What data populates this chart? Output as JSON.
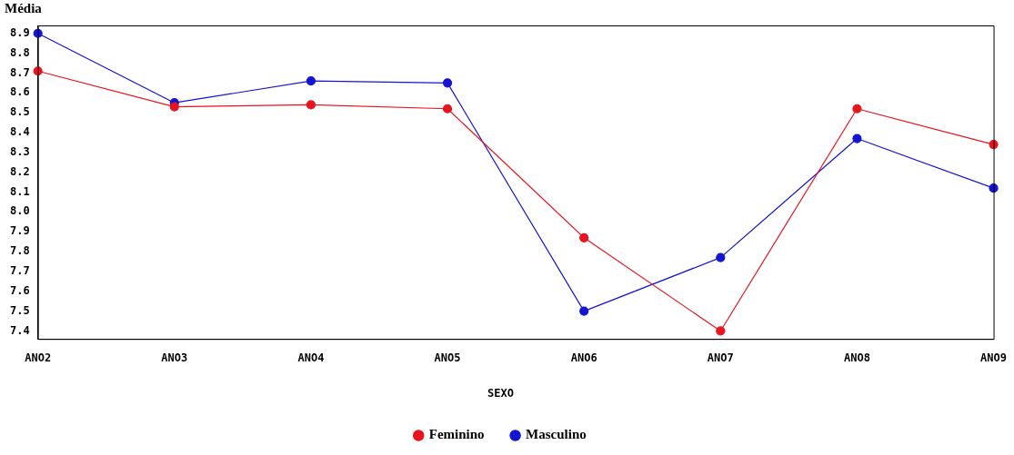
{
  "chart_data": {
    "type": "line",
    "ylabel": "Média",
    "legend_title": "SEXO",
    "legend": "bottom",
    "grid": false,
    "marker": "circle",
    "line_style": "solid",
    "categories": [
      "ANO2",
      "ANO3",
      "ANO4",
      "ANO5",
      "ANO6",
      "ANO7",
      "ANO8",
      "ANO9"
    ],
    "ylim": [
      7.36,
      8.94
    ],
    "yticks": [
      {
        "value": 7.4,
        "label": "7.4"
      },
      {
        "value": 7.5,
        "label": "7.5"
      },
      {
        "value": 7.6,
        "label": "7.6"
      },
      {
        "value": 7.7,
        "label": "7.7"
      },
      {
        "value": 7.8,
        "label": "7.8"
      },
      {
        "value": 7.9,
        "label": "7.9"
      },
      {
        "value": 8.0,
        "label": "8.0"
      },
      {
        "value": 8.1,
        "label": "8.1"
      },
      {
        "value": 8.2,
        "label": "8.2"
      },
      {
        "value": 8.3,
        "label": "8.3"
      },
      {
        "value": 8.4,
        "label": "8.4"
      },
      {
        "value": 8.5,
        "label": "8.5"
      },
      {
        "value": 8.6,
        "label": "8.6"
      },
      {
        "value": 8.7,
        "label": "8.7"
      },
      {
        "value": 8.8,
        "label": "8.8"
      },
      {
        "value": 8.9,
        "label": "8.9"
      }
    ],
    "series": [
      {
        "name": "Feminino",
        "color": "#e8141e",
        "values": [
          8.71,
          8.53,
          8.54,
          8.52,
          7.87,
          7.4,
          8.52,
          8.34
        ]
      },
      {
        "name": "Masculino",
        "color": "#1414d2",
        "values": [
          8.9,
          8.55,
          8.66,
          8.65,
          7.5,
          7.77,
          8.37,
          8.12
        ]
      }
    ]
  }
}
